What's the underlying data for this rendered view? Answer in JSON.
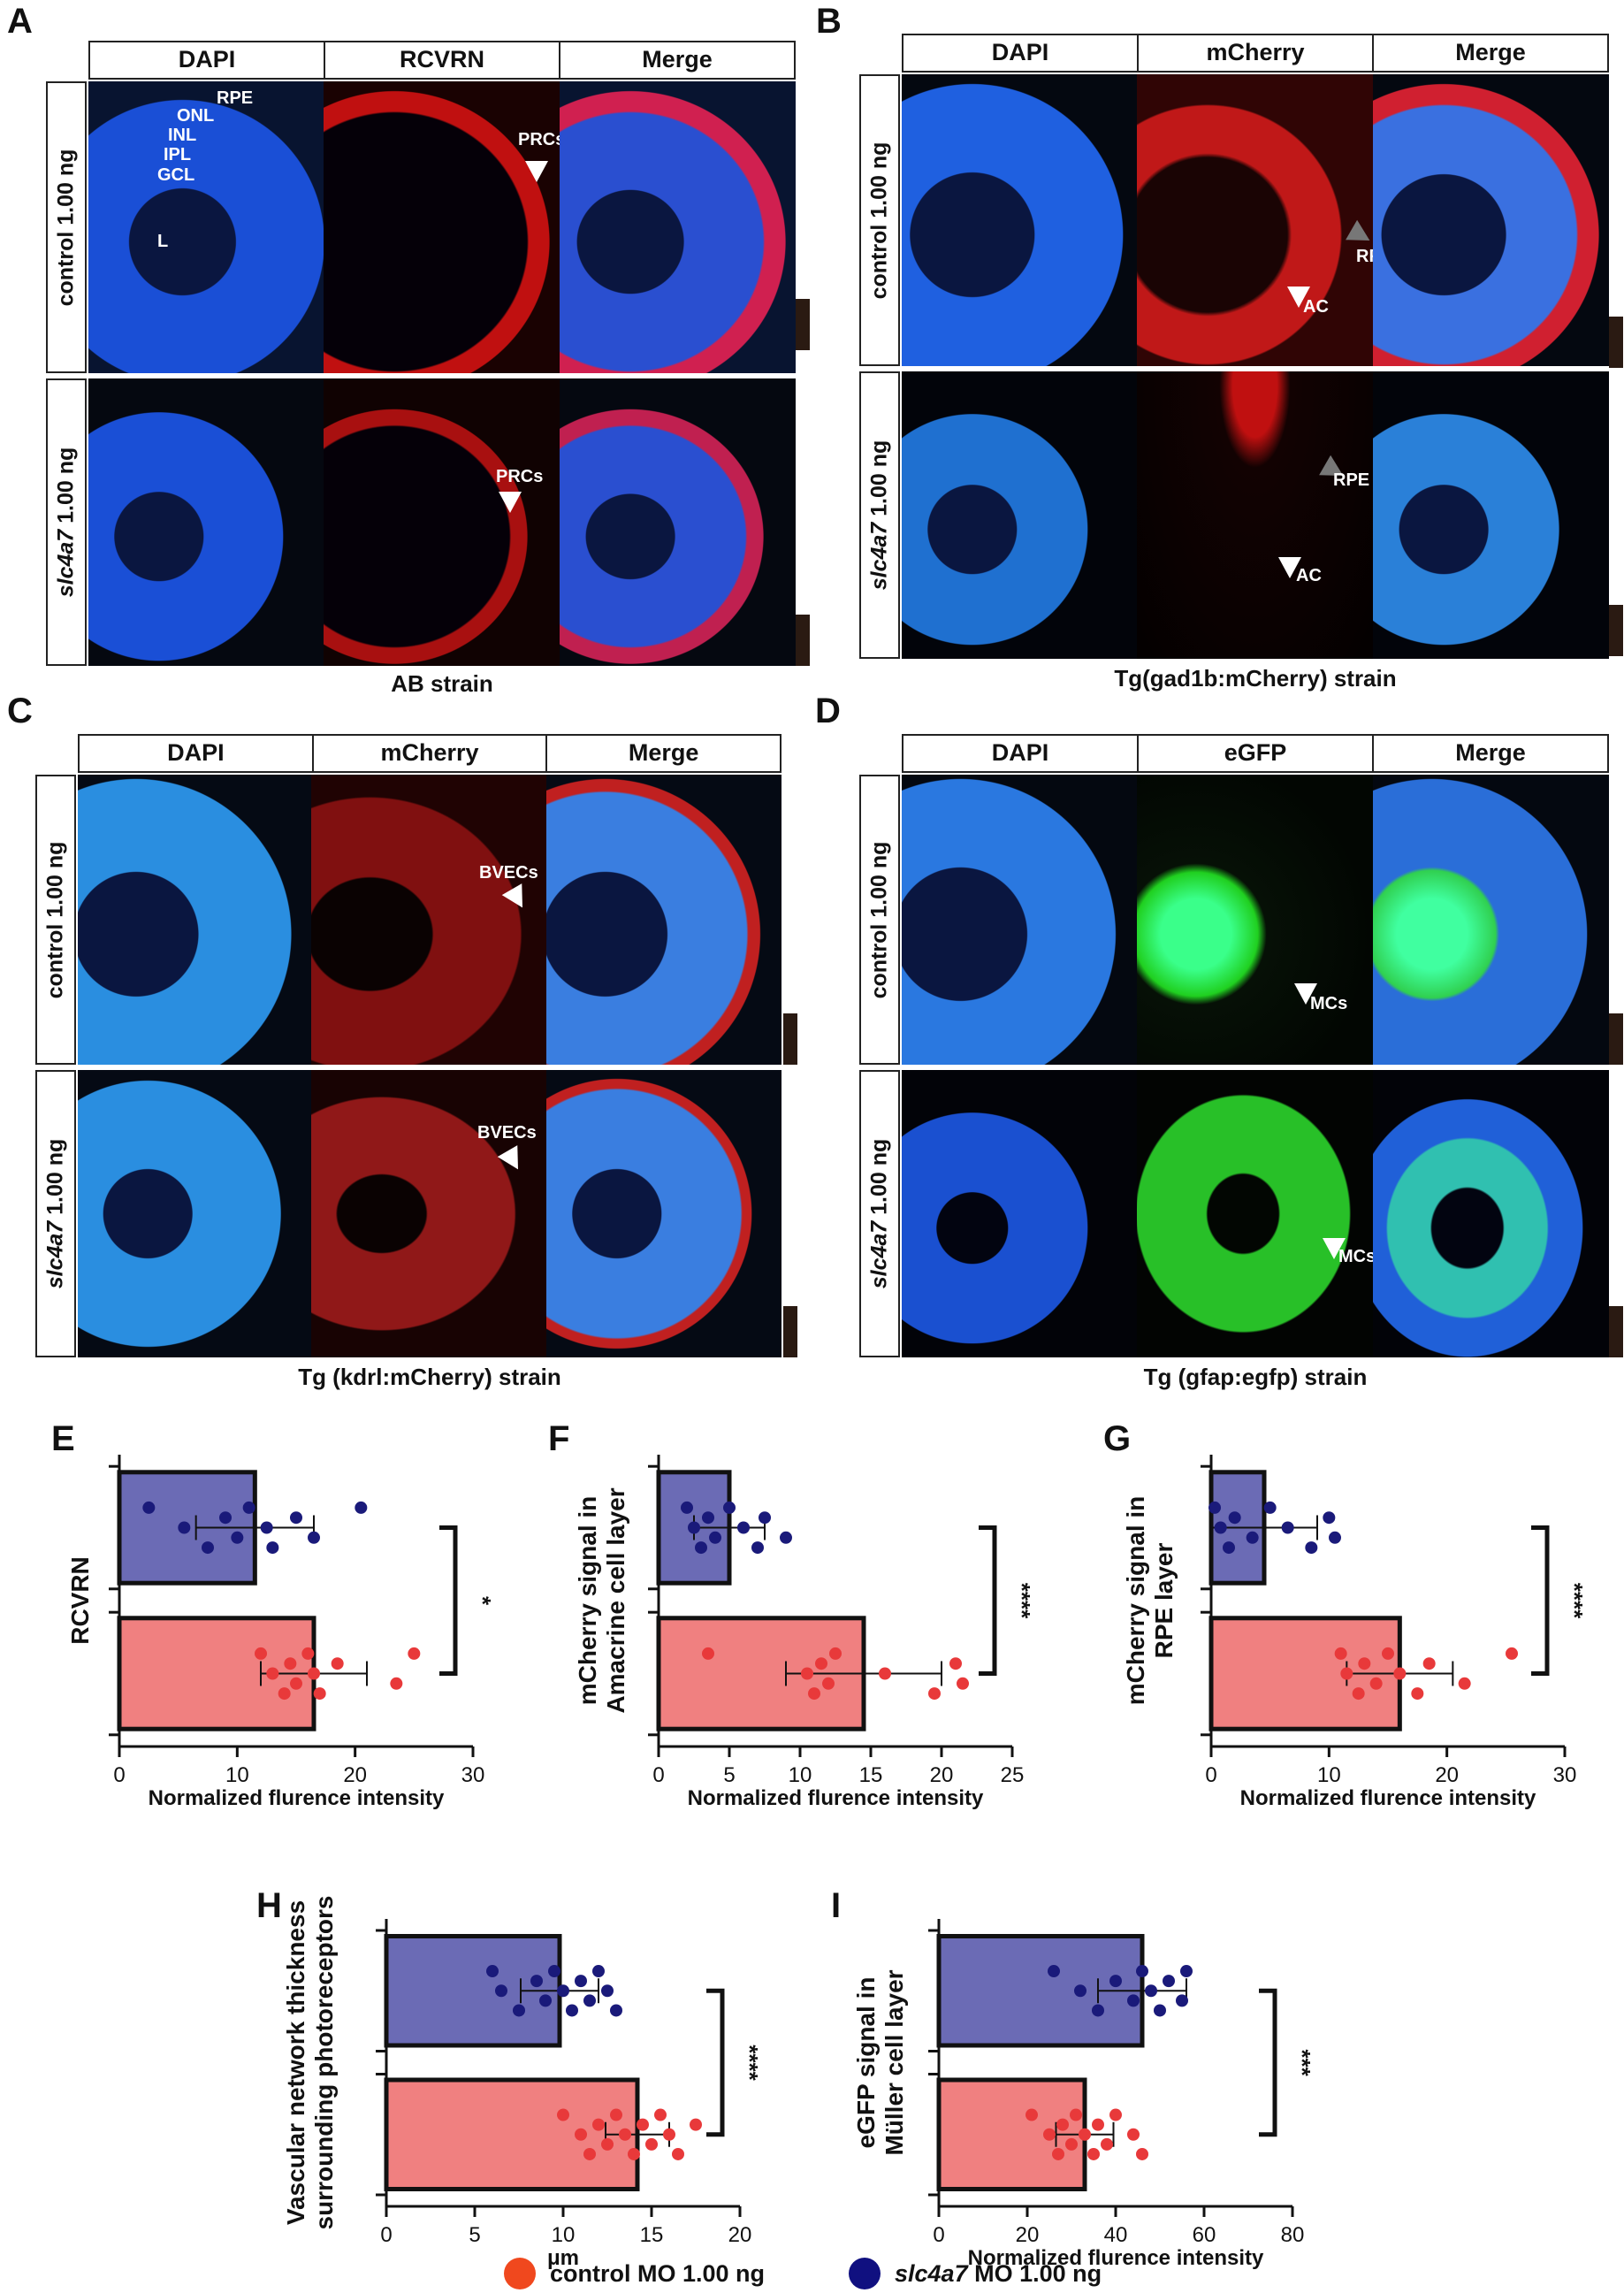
{
  "panelA": {
    "letter": "A",
    "headers": [
      "DAPI",
      "RCVRN",
      "Merge"
    ],
    "rows": [
      "control 1.00 ng",
      "slc4a7 1.00 ng"
    ],
    "strain": "AB strain",
    "layers": [
      "RPE",
      "ONL",
      "INL",
      "IPL",
      "GCL",
      "L"
    ],
    "arrow_label": "PRCs"
  },
  "panelB": {
    "letter": "B",
    "headers": [
      "DAPI",
      "mCherry",
      "Merge"
    ],
    "rows": [
      "control 1.00 ng",
      "slc4a7 1.00 ng"
    ],
    "strain": "Tg(gad1b:mCherry) strain",
    "arrow_label1": "RPE",
    "arrow_label2": "AC"
  },
  "panelC": {
    "letter": "C",
    "headers": [
      "DAPI",
      "mCherry",
      "Merge"
    ],
    "rows": [
      "control 1.00 ng",
      "slc4a7 1.00 ng"
    ],
    "strain": "Tg (kdrl:mCherry) strain",
    "arrow_label": "BVECs"
  },
  "panelD": {
    "letter": "D",
    "headers": [
      "DAPI",
      "eGFP",
      "Merge"
    ],
    "rows": [
      "control 1.00 ng",
      "slc4a7 1.00 ng"
    ],
    "strain": "Tg (gfap:egfp) strain",
    "arrow_label": "MCs"
  },
  "colors": {
    "control": "#f08080",
    "control_dot": "#e8393a",
    "slc": "#6b6bb5",
    "slc_dot": "#1a1a7a"
  },
  "legend": {
    "control": "control MO 1.00 ng",
    "slc_italic": "slc4a7",
    "slc_rest": " MO 1.00 ng"
  },
  "chart_data": [
    {
      "panel": "E",
      "type": "bar",
      "orientation": "horizontal",
      "ylabel": [
        "RCVRN"
      ],
      "xlabel": "Normalized flurence intensity",
      "xlim": [
        0,
        30
      ],
      "ticks": [
        0,
        10,
        20,
        30
      ],
      "sig": "*",
      "series": [
        {
          "name": "slc4a7 MO 1.00 ng",
          "mean": 11.5,
          "sd": 5,
          "points": [
            2.5,
            5.5,
            7.5,
            9,
            10,
            11,
            12.5,
            13,
            15,
            16.5,
            20.5
          ]
        },
        {
          "name": "control MO 1.00 ng",
          "mean": 16.5,
          "sd": 4.5,
          "points": [
            12,
            13,
            14,
            14.5,
            15,
            16,
            16.5,
            17,
            18.5,
            23.5,
            25
          ]
        }
      ]
    },
    {
      "panel": "F",
      "type": "bar",
      "orientation": "horizontal",
      "ylabel": [
        "mCherry signal in",
        "Amacrine cell layer"
      ],
      "xlabel": "Normalized flurence intensity",
      "xlim": [
        0,
        25
      ],
      "ticks": [
        0,
        5,
        10,
        15,
        20,
        25
      ],
      "sig": "****",
      "series": [
        {
          "name": "slc4a7 MO 1.00 ng",
          "mean": 5,
          "sd": 2.5,
          "points": [
            2,
            2.5,
            3,
            3.5,
            4,
            5,
            6,
            7,
            7.5,
            9
          ]
        },
        {
          "name": "control MO 1.00 ng",
          "mean": 14.5,
          "sd": 5.5,
          "points": [
            3.5,
            10.5,
            11,
            11.5,
            12,
            12.5,
            16,
            19.5,
            21,
            21.5
          ]
        }
      ]
    },
    {
      "panel": "G",
      "type": "bar",
      "orientation": "horizontal",
      "ylabel": [
        "mCherry signal in",
        "RPE layer"
      ],
      "xlabel": "Normalized flurence intensity",
      "xlim": [
        0,
        30
      ],
      "ticks": [
        0,
        10,
        20,
        30
      ],
      "sig": "****",
      "series": [
        {
          "name": "slc4a7 MO 1.00 ng",
          "mean": 4.5,
          "sd": 4.5,
          "points": [
            0.3,
            0.8,
            1.5,
            2,
            3.5,
            5,
            6.5,
            8.5,
            10,
            10.5
          ]
        },
        {
          "name": "control MO 1.00 ng",
          "mean": 16,
          "sd": 4.5,
          "points": [
            11,
            11.5,
            12.5,
            13,
            14,
            15,
            16,
            17.5,
            18.5,
            21.5,
            25.5
          ]
        }
      ]
    },
    {
      "panel": "H",
      "type": "bar",
      "orientation": "horizontal",
      "ylabel": [
        "Vascular network thickness",
        "surrounding photoreceptors"
      ],
      "xlabel": "μm",
      "xlim": [
        0,
        20
      ],
      "ticks": [
        0,
        5,
        10,
        15,
        20
      ],
      "sig": "****",
      "series": [
        {
          "name": "slc4a7 MO 1.00 ng",
          "mean": 9.8,
          "sd": 2.2,
          "points": [
            6,
            6.5,
            7.5,
            8.5,
            9,
            9.5,
            10,
            10.5,
            11,
            11.5,
            12,
            12.5,
            13
          ]
        },
        {
          "name": "control MO 1.00 ng",
          "mean": 14.2,
          "sd": 1.8,
          "points": [
            10,
            11,
            11.5,
            12,
            12.5,
            13,
            13.5,
            14,
            14.5,
            15,
            15.5,
            16,
            16.5,
            17.5
          ]
        }
      ]
    },
    {
      "panel": "I",
      "type": "bar",
      "orientation": "horizontal",
      "ylabel": [
        "eGFP signal in",
        "Müller cell layer"
      ],
      "xlabel": "Normalized flurence intensity",
      "xlim": [
        0,
        80
      ],
      "ticks": [
        0,
        20,
        40,
        60,
        80
      ],
      "sig": "***",
      "series": [
        {
          "name": "slc4a7 MO 1.00 ng",
          "mean": 46,
          "sd": 10,
          "points": [
            26,
            32,
            36,
            40,
            44,
            46,
            48,
            50,
            52,
            55,
            56
          ]
        },
        {
          "name": "control MO 1.00 ng",
          "mean": 33,
          "sd": 6.5,
          "points": [
            21,
            25,
            27,
            28,
            30,
            31,
            33,
            35,
            36,
            38,
            40,
            44,
            46
          ]
        }
      ]
    }
  ]
}
